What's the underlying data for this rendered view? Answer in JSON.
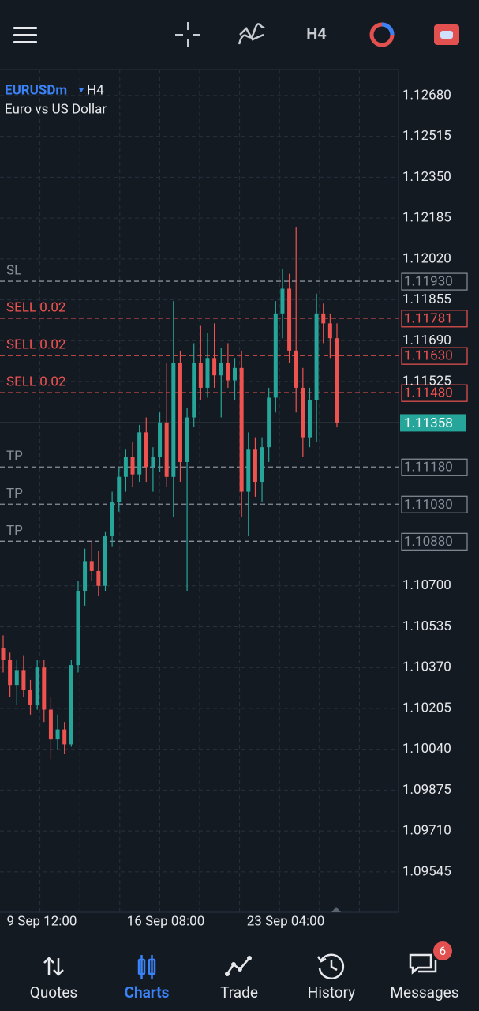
{
  "toolbar": {
    "timeframe": "H4"
  },
  "chart": {
    "symbol": "EURUSDm",
    "timeframe": "H4",
    "description": "Euro vs US Dollar",
    "ylim": [
      1.09382,
      1.12785
    ],
    "yticks": [
      {
        "value": 1.1268,
        "label": "1.12680"
      },
      {
        "value": 1.12515,
        "label": "1.12515"
      },
      {
        "value": 1.1235,
        "label": "1.12350"
      },
      {
        "value": 1.12185,
        "label": "1.12185"
      },
      {
        "value": 1.1202,
        "label": "1.12020"
      },
      {
        "value": 1.11855,
        "label": "1.11855"
      },
      {
        "value": 1.1169,
        "label": "1.11690"
      },
      {
        "value": 1.11525,
        "label": "1.11525"
      },
      {
        "value": 1.107,
        "label": "1.10700"
      },
      {
        "value": 1.10535,
        "label": "1.10535"
      },
      {
        "value": 1.1037,
        "label": "1.10370"
      },
      {
        "value": 1.10205,
        "label": "1.10205"
      },
      {
        "value": 1.1004,
        "label": "1.10040"
      },
      {
        "value": 1.09875,
        "label": "1.09875"
      },
      {
        "value": 1.0971,
        "label": "1.09710"
      },
      {
        "value": 1.09545,
        "label": "1.09545"
      }
    ],
    "candles": {
      "open": [
        1.1045,
        1.104,
        1.103,
        1.1036,
        1.1028,
        1.1022,
        1.1037,
        1.102,
        1.1008,
        1.1012,
        1.1006,
        1.1038,
        1.1068,
        1.108,
        1.1076,
        1.107,
        1.109,
        1.1104,
        1.1114,
        1.1122,
        1.1115,
        1.1132,
        1.1118,
        1.1122,
        1.1136,
        1.1114,
        1.116,
        1.112,
        1.1138,
        1.116,
        1.115,
        1.1162,
        1.1155,
        1.116,
        1.1153,
        1.1158,
        1.1108,
        1.1125,
        1.1112,
        1.1126,
        1.1146,
        1.118,
        1.119,
        1.1165,
        1.115,
        1.113,
        1.1145,
        1.118,
        1.1176,
        1.117
      ],
      "high": [
        1.105,
        1.1043,
        1.104,
        1.1042,
        1.1032,
        1.104,
        1.104,
        1.1025,
        1.1018,
        1.1015,
        1.104,
        1.1072,
        1.1085,
        1.1088,
        1.1084,
        1.1092,
        1.1108,
        1.1118,
        1.1125,
        1.1128,
        1.1135,
        1.1138,
        1.1126,
        1.114,
        1.116,
        1.1185,
        1.1165,
        1.1142,
        1.1168,
        1.1175,
        1.1172,
        1.1176,
        1.1166,
        1.1168,
        1.1162,
        1.1165,
        1.1132,
        1.113,
        1.113,
        1.115,
        1.1185,
        1.1198,
        1.1196,
        1.1215,
        1.1158,
        1.115,
        1.1188,
        1.1184,
        1.118,
        1.1176
      ],
      "low": [
        1.1035,
        1.1025,
        1.1022,
        1.1025,
        1.1018,
        1.102,
        1.1015,
        1.1,
        1.1004,
        1.1002,
        1.1005,
        1.1035,
        1.1062,
        1.1072,
        1.1066,
        1.1068,
        1.1086,
        1.11,
        1.1108,
        1.111,
        1.1112,
        1.1112,
        1.1108,
        1.1116,
        1.111,
        1.1098,
        1.1112,
        1.1068,
        1.1134,
        1.1145,
        1.1146,
        1.115,
        1.1138,
        1.115,
        1.1145,
        1.1098,
        1.109,
        1.1106,
        1.1104,
        1.112,
        1.114,
        1.117,
        1.116,
        1.114,
        1.1122,
        1.1126,
        1.1128,
        1.1168,
        1.1162,
        1.1134
      ],
      "close": [
        1.104,
        1.103,
        1.1036,
        1.1028,
        1.1022,
        1.1037,
        1.102,
        1.1008,
        1.1012,
        1.1006,
        1.1038,
        1.1068,
        1.108,
        1.1076,
        1.107,
        1.109,
        1.1104,
        1.1114,
        1.1122,
        1.1115,
        1.1132,
        1.1118,
        1.1122,
        1.1136,
        1.1114,
        1.116,
        1.112,
        1.1138,
        1.116,
        1.115,
        1.1162,
        1.1155,
        1.116,
        1.1153,
        1.1158,
        1.1108,
        1.1125,
        1.1112,
        1.1126,
        1.1146,
        1.118,
        1.119,
        1.1165,
        1.115,
        1.113,
        1.1145,
        1.118,
        1.1176,
        1.117,
        1.11358
      ]
    },
    "up_color": "#26a69a",
    "down_color": "#ef5350",
    "levels": [
      {
        "label": "SL",
        "value": 1.1193,
        "value_label": "1.11930",
        "color": "#8a9099"
      },
      {
        "label": "SELL 0.02",
        "value": 1.11781,
        "value_label": "1.11781",
        "color": "#ef5350"
      },
      {
        "label": "SELL 0.02",
        "value": 1.1163,
        "value_label": "1.11630",
        "color": "#ef5350"
      },
      {
        "label": "SELL 0.02",
        "value": 1.1148,
        "value_label": "1.11480",
        "color": "#ef5350"
      },
      {
        "label": "TP",
        "value": 1.1118,
        "value_label": "1.11180",
        "color": "#8a9099"
      },
      {
        "label": "TP",
        "value": 1.1103,
        "value_label": "1.11030",
        "color": "#8a9099"
      },
      {
        "label": "TP",
        "value": 1.1088,
        "value_label": "1.10880",
        "color": "#8a9099"
      }
    ],
    "current_price": {
      "value": 1.11358,
      "label": "1.11358",
      "color": "#26a69a"
    },
    "time_labels": [
      "9 Sep 12:00",
      "16 Sep 08:00",
      "23 Sep 04:00"
    ]
  },
  "nav": {
    "items": [
      "Quotes",
      "Charts",
      "Trade",
      "History",
      "Messages"
    ],
    "badge": 6
  }
}
